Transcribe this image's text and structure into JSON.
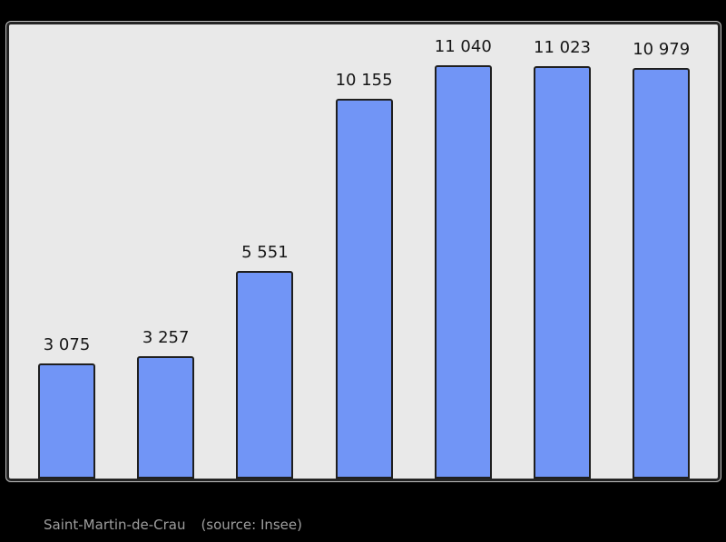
{
  "page": {
    "background": "#000000"
  },
  "plot": {
    "background": "#e9e9e9",
    "border_color": "#242424",
    "outer_outline_color": "#ffffff"
  },
  "chart_data": {
    "type": "bar",
    "values": [
      3075,
      3257,
      5551,
      10155,
      11040,
      11023,
      10979
    ],
    "value_labels": [
      "3 075",
      "3 257",
      "5 551",
      "10 155",
      "11 040",
      "11 023",
      "10 979"
    ],
    "ylim": [
      0,
      11040
    ],
    "grid": false,
    "legend": false,
    "bar_fill": "#7195f6",
    "bar_border": "#1f1f1f",
    "value_label_color": "#161616",
    "plot_background": "#e9e9e9"
  },
  "caption": {
    "commune": "Saint-Martin-de-Crau",
    "source": "(source: Insee)",
    "color": "#9e9e9e"
  }
}
